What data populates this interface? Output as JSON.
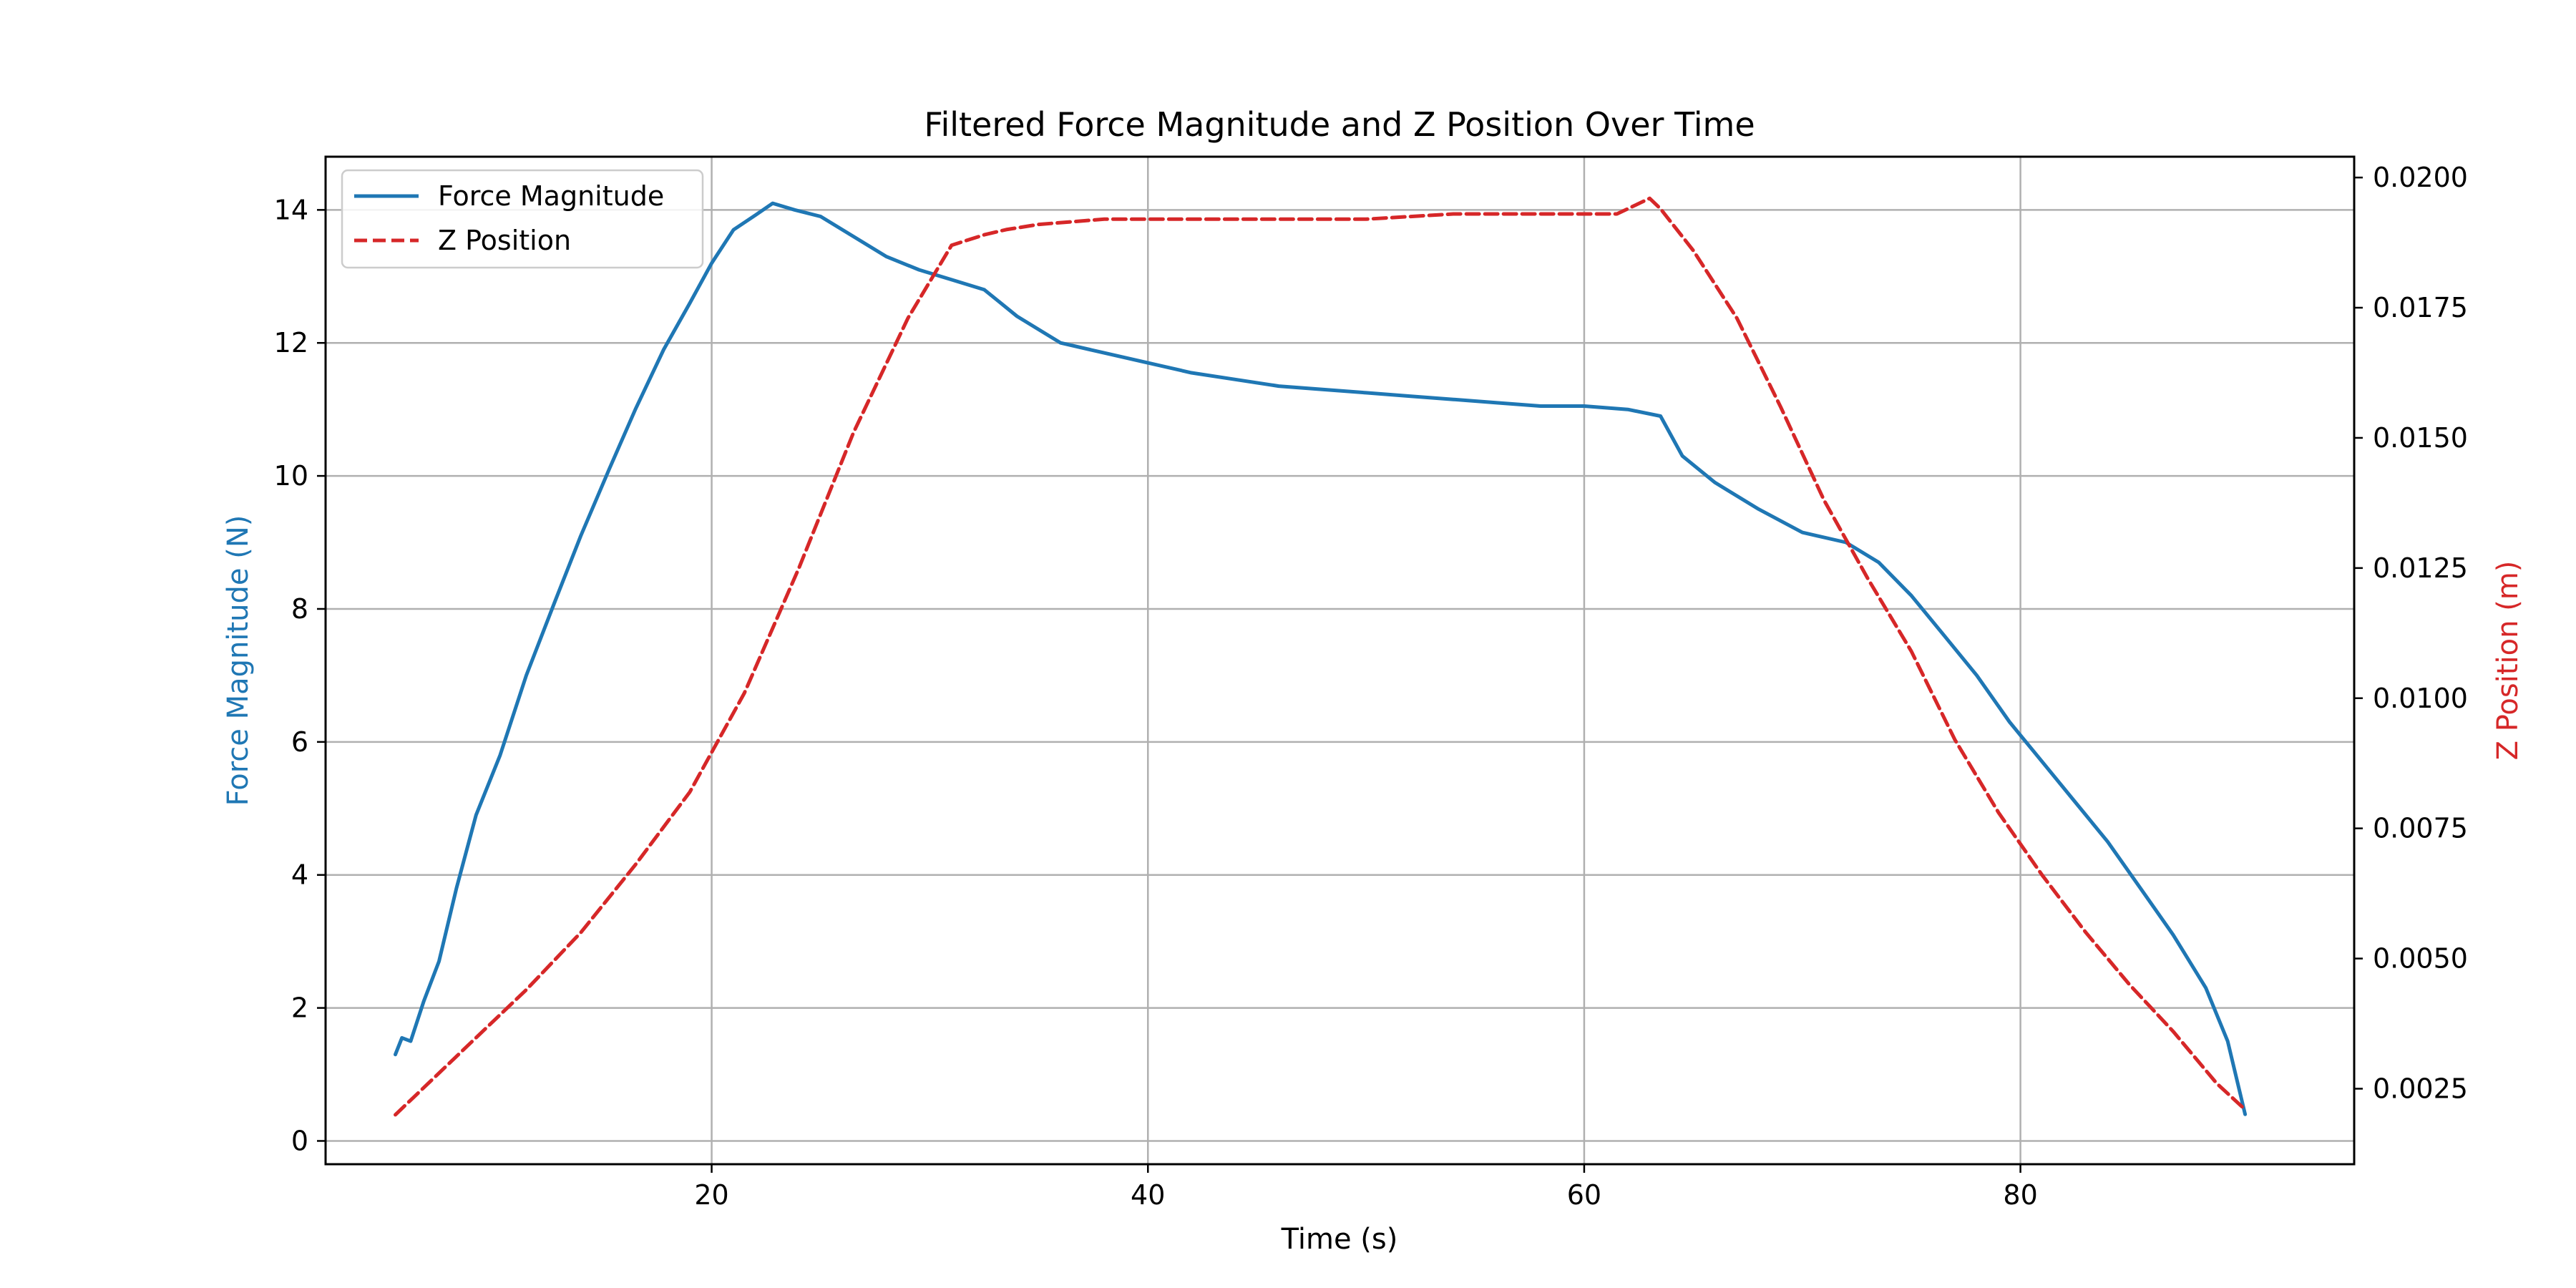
{
  "chart_data": {
    "type": "line",
    "title": "Filtered Force Magnitude and Z Position Over Time",
    "xlabel": "Time (s)",
    "ylabel_left": "Force Magnitude (N)",
    "ylabel_right": "Z Position (m)",
    "xlim": [
      2.3,
      95.3
    ],
    "ylim_left": [
      -0.35,
      14.8
    ],
    "ylim_right": [
      0.00105,
      0.0204
    ],
    "x_ticks": [
      20,
      40,
      60,
      80
    ],
    "y_ticks_left": [
      0,
      2,
      4,
      6,
      8,
      10,
      12,
      14
    ],
    "y_ticks_right": [
      0.0025,
      0.005,
      0.0075,
      0.01,
      0.0125,
      0.015,
      0.0175,
      0.02
    ],
    "y_tick_labels_left": [
      "0",
      "2",
      "4",
      "6",
      "8",
      "10",
      "12",
      "14"
    ],
    "y_tick_labels_right": [
      "0.0025",
      "0.0050",
      "0.0075",
      "0.0100",
      "0.0125",
      "0.0150",
      "0.0175",
      "0.0200"
    ],
    "x_tick_labels": [
      "20",
      "40",
      "60",
      "80"
    ],
    "grid": true,
    "legend_position": "top-left",
    "colors": {
      "force": "#1f77b4",
      "z": "#d62728",
      "grid": "#b0b0b0"
    },
    "series": [
      {
        "name": "Force Magnitude",
        "axis": "left",
        "style": "solid",
        "x": [
          5.5,
          5.8,
          6.2,
          6.8,
          7.5,
          8.3,
          9.2,
          10.3,
          11.5,
          12.8,
          14.0,
          15.3,
          16.5,
          17.8,
          19.0,
          20.0,
          21.0,
          22.0,
          22.8,
          23.8,
          25.0,
          26.5,
          28.0,
          29.5,
          31.0,
          32.5,
          34.0,
          36.0,
          38.0,
          40.0,
          42.0,
          44.0,
          46.0,
          48.0,
          50.0,
          52.0,
          54.0,
          56.0,
          58.0,
          60.0,
          62.0,
          63.5,
          64.5,
          66.0,
          68.0,
          70.0,
          72.0,
          73.5,
          75.0,
          76.5,
          78.0,
          79.5,
          81.0,
          82.5,
          84.0,
          85.5,
          87.0,
          88.5,
          89.5,
          90.3
        ],
        "y": [
          1.3,
          1.55,
          1.5,
          2.1,
          2.7,
          3.8,
          4.9,
          5.8,
          7.0,
          8.1,
          9.1,
          10.1,
          11.0,
          11.9,
          12.6,
          13.2,
          13.7,
          13.92,
          14.1,
          14.0,
          13.9,
          13.6,
          13.3,
          13.1,
          12.95,
          12.8,
          12.4,
          12.0,
          11.85,
          11.7,
          11.55,
          11.45,
          11.35,
          11.3,
          11.25,
          11.2,
          11.15,
          11.1,
          11.05,
          11.05,
          11.0,
          10.9,
          10.3,
          9.9,
          9.5,
          9.15,
          9.0,
          8.7,
          8.2,
          7.6,
          7.0,
          6.3,
          5.7,
          5.1,
          4.5,
          3.8,
          3.1,
          2.3,
          1.5,
          0.4
        ]
      },
      {
        "name": "Z Position",
        "axis": "right",
        "style": "dashed",
        "x": [
          5.5,
          7.0,
          9.0,
          11.5,
          14.0,
          16.5,
          19.0,
          21.5,
          24.0,
          26.5,
          29.0,
          31.0,
          32.5,
          33.5,
          35.0,
          38.0,
          42.0,
          46.0,
          50.0,
          54.0,
          58.0,
          61.5,
          62.5,
          63.0,
          63.5,
          65.0,
          67.0,
          69.0,
          71.0,
          73.0,
          75.0,
          77.0,
          79.0,
          81.0,
          83.0,
          85.0,
          87.0,
          89.0,
          90.3
        ],
        "y": [
          0.002,
          0.0026,
          0.0034,
          0.0044,
          0.0055,
          0.0068,
          0.0082,
          0.0101,
          0.0125,
          0.0151,
          0.0173,
          0.0187,
          0.0189,
          0.019,
          0.0191,
          0.0192,
          0.0192,
          0.0192,
          0.0192,
          0.0193,
          0.0193,
          0.0193,
          0.0195,
          0.0196,
          0.0194,
          0.0186,
          0.0173,
          0.0156,
          0.0138,
          0.0123,
          0.0109,
          0.0092,
          0.0078,
          0.0066,
          0.0055,
          0.0045,
          0.0036,
          0.0026,
          0.0021
        ]
      }
    ]
  }
}
